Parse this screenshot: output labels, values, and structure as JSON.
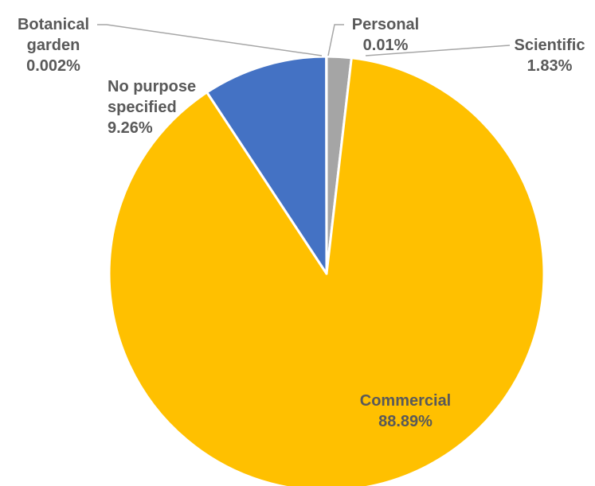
{
  "chart_data": {
    "type": "pie",
    "title": "",
    "slices": [
      {
        "label_lines": [
          "Scientific"
        ],
        "value": 1.83,
        "value_text": "1.83%",
        "color": "#a5a5a5"
      },
      {
        "label_lines": [
          "Commercial"
        ],
        "value": 88.89,
        "value_text": "88.89%",
        "color": "#ffc000"
      },
      {
        "label_lines": [
          "No purpose",
          "specified"
        ],
        "value": 9.26,
        "value_text": "9.26%",
        "color": "#4472c4"
      },
      {
        "label_lines": [
          "Botanical",
          "garden"
        ],
        "value": 0.002,
        "value_text": "0.002%",
        "color": "#ed7d31"
      },
      {
        "label_lines": [
          "Personal"
        ],
        "value": 0.01,
        "value_text": "0.01%",
        "color": "#5b9bd5"
      }
    ],
    "label_color": "#595959",
    "leader_line_color": "#a6a6a6",
    "slice_border_color": "#ffffff"
  }
}
